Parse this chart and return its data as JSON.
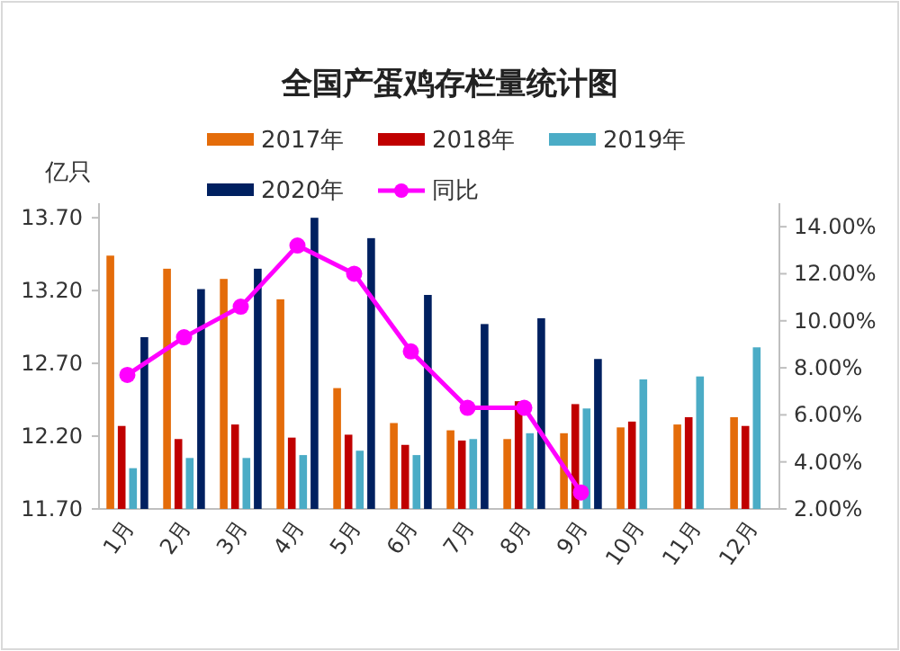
{
  "chart_data": {
    "type": "bar",
    "title": "全国产蛋鸡存栏量统计图",
    "ylabel": "亿只",
    "categories": [
      "1月",
      "2月",
      "3月",
      "4月",
      "5月",
      "6月",
      "7月",
      "8月",
      "9月",
      "10月",
      "11月",
      "12月"
    ],
    "series": [
      {
        "name": "2017年",
        "color": "#e46c0a",
        "values": [
          13.44,
          13.35,
          13.28,
          13.14,
          12.53,
          12.29,
          12.24,
          12.18,
          12.22,
          12.26,
          12.28,
          12.33
        ]
      },
      {
        "name": "2018年",
        "color": "#c00000",
        "values": [
          12.27,
          12.18,
          12.28,
          12.19,
          12.21,
          12.14,
          12.17,
          12.44,
          12.42,
          12.3,
          12.33,
          12.27
        ]
      },
      {
        "name": "2019年",
        "color": "#4bacc6",
        "values": [
          11.98,
          12.05,
          12.05,
          12.07,
          12.1,
          12.07,
          12.18,
          12.22,
          12.39,
          12.59,
          12.61,
          12.81
        ]
      },
      {
        "name": "2020年",
        "color": "#002060",
        "values": [
          12.88,
          13.21,
          13.35,
          13.7,
          13.56,
          13.17,
          12.97,
          13.01,
          12.73,
          null,
          null,
          null
        ]
      },
      {
        "name": "同比",
        "type": "line",
        "axis": "y2",
        "marker": "circle",
        "color": "#ff00ff",
        "values": [
          7.7,
          9.3,
          10.6,
          13.2,
          12.0,
          8.7,
          6.3,
          6.3,
          2.7,
          null,
          null,
          null
        ]
      }
    ],
    "ylim": [
      11.7,
      13.8
    ],
    "yticks": [
      {
        "value": 11.7,
        "label": "11.70"
      },
      {
        "value": 12.2,
        "label": "12.20"
      },
      {
        "value": 12.7,
        "label": "12.70"
      },
      {
        "value": 13.2,
        "label": "13.20"
      },
      {
        "value": 13.7,
        "label": "13.70"
      }
    ],
    "y2lim": [
      2,
      15
    ],
    "y2ticks": [
      {
        "value": 2,
        "label": "2.00%"
      },
      {
        "value": 4,
        "label": "4.00%"
      },
      {
        "value": 6,
        "label": "6.00%"
      },
      {
        "value": 8,
        "label": "8.00%"
      },
      {
        "value": 10,
        "label": "10.00%"
      },
      {
        "value": 12,
        "label": "12.00%"
      },
      {
        "value": 14,
        "label": "14.00%"
      }
    ],
    "legend": "top",
    "grid": false
  }
}
